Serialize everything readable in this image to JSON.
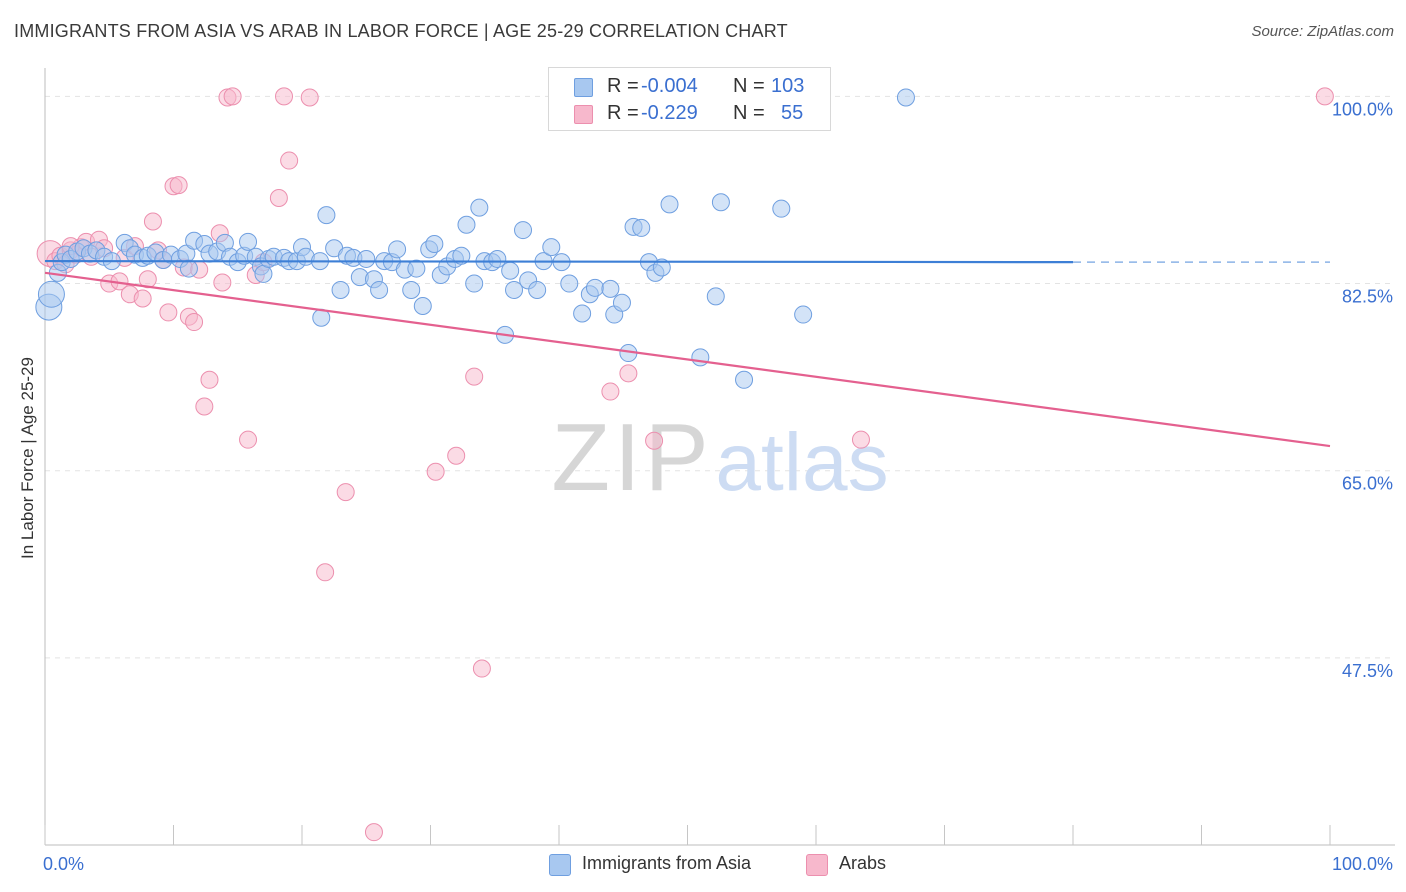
{
  "title": "IMMIGRANTS FROM ASIA VS ARAB IN LABOR FORCE | AGE 25-29 CORRELATION CHART",
  "source": "Source: ZipAtlas.com",
  "watermark": {
    "zip": "ZIP",
    "atlas": "atlas"
  },
  "legend": {
    "series1": {
      "r_label": "R =",
      "r_value": "-0.004",
      "n_label": "N =",
      "n_value": "103"
    },
    "series2": {
      "r_label": "R =",
      "r_value": "-0.229",
      "n_label": "N =",
      "n_value": "55"
    }
  },
  "bottom_legend": {
    "series1": "Immigrants from Asia",
    "series2": "Arabs"
  },
  "colors": {
    "blue_fill": "#a8c8f0",
    "blue_stroke": "#6f9fe0",
    "blue_line": "#3d7fd6",
    "pink_fill": "#f7b8cc",
    "pink_stroke": "#ec8fae",
    "pink_line": "#e4608f",
    "axis_label": "#3a6fd0",
    "grid": "#e3e3e3"
  },
  "chart_data": {
    "type": "scatter",
    "title": "IMMIGRANTS FROM ASIA VS ARAB IN LABOR FORCE | AGE 25-29 CORRELATION CHART",
    "xlabel": "",
    "ylabel": "In Labor Force | Age 25-29",
    "xlim": [
      0,
      100
    ],
    "ylim": [
      30,
      102
    ],
    "x_tick_labels": [
      "0.0%",
      "100.0%"
    ],
    "y_ticks": [
      {
        "value": 100.0,
        "label": "100.0%"
      },
      {
        "value": 82.5,
        "label": "82.5%"
      },
      {
        "value": 65.0,
        "label": "65.0%"
      },
      {
        "value": 47.5,
        "label": "47.5%"
      }
    ],
    "series": [
      {
        "name": "Immigrants from Asia",
        "color": "#6f9fe0",
        "trend": {
          "x": [
            0,
            80
          ],
          "y": [
            84.6,
            84.5
          ],
          "dashed_to_x": 100
        },
        "points": [
          [
            0.3,
            80.3,
            2
          ],
          [
            0.5,
            81.5,
            2
          ],
          [
            1,
            83.5,
            1
          ],
          [
            1.3,
            84.5,
            1
          ],
          [
            1.6,
            85.2,
            1
          ],
          [
            2,
            84.8,
            1
          ],
          [
            2.5,
            85.5,
            1
          ],
          [
            3,
            85.8,
            1
          ],
          [
            3.5,
            85.3,
            1
          ],
          [
            4,
            85.6,
            1
          ],
          [
            4.6,
            85.0,
            1
          ],
          [
            5.2,
            84.6,
            1
          ],
          [
            6.2,
            86.3,
            1
          ],
          [
            6.6,
            85.8,
            1
          ],
          [
            7,
            85.2,
            1
          ],
          [
            7.6,
            84.9,
            1
          ],
          [
            8,
            85.1,
            1
          ],
          [
            8.6,
            85.4,
            1
          ],
          [
            9.2,
            84.7,
            1
          ],
          [
            9.8,
            85.2,
            1
          ],
          [
            10.5,
            84.8,
            1
          ],
          [
            11,
            85.3,
            1
          ],
          [
            11.2,
            83.9,
            1
          ],
          [
            11.6,
            86.5,
            1
          ],
          [
            12.4,
            86.2,
            1
          ],
          [
            12.8,
            85.3,
            1
          ],
          [
            13.4,
            85.5,
            1
          ],
          [
            14,
            86.3,
            1
          ],
          [
            14.4,
            85.0,
            1
          ],
          [
            15,
            84.5,
            1
          ],
          [
            15.5,
            85.1,
            1
          ],
          [
            15.8,
            86.4,
            1
          ],
          [
            16.4,
            85.0,
            1
          ],
          [
            16.8,
            84.1,
            1
          ],
          [
            17,
            83.4,
            1
          ],
          [
            17.4,
            84.8,
            1
          ],
          [
            17.8,
            85.0,
            1
          ],
          [
            18.6,
            84.9,
            1
          ],
          [
            19,
            84.6,
            1
          ],
          [
            19.6,
            84.6,
            1
          ],
          [
            20,
            85.9,
            1
          ],
          [
            20.3,
            85.0,
            1
          ],
          [
            21.4,
            84.6,
            1
          ],
          [
            21.5,
            79.3,
            1
          ],
          [
            21.9,
            88.9,
            1
          ],
          [
            22.5,
            85.8,
            1
          ],
          [
            23,
            81.9,
            1
          ],
          [
            23.5,
            85.1,
            1
          ],
          [
            24,
            84.9,
            1
          ],
          [
            24.5,
            83.1,
            1
          ],
          [
            25,
            84.8,
            1
          ],
          [
            25.6,
            82.9,
            1
          ],
          [
            26,
            81.9,
            1
          ],
          [
            26.4,
            84.6,
            1
          ],
          [
            27,
            84.5,
            1
          ],
          [
            27.4,
            85.7,
            1
          ],
          [
            28,
            83.8,
            1
          ],
          [
            28.5,
            81.9,
            1
          ],
          [
            28.9,
            83.9,
            1
          ],
          [
            29.4,
            80.4,
            1
          ],
          [
            29.9,
            85.7,
            1
          ],
          [
            30.3,
            86.2,
            1
          ],
          [
            30.8,
            83.3,
            1
          ],
          [
            31.3,
            84.1,
            1
          ],
          [
            31.9,
            84.8,
            1
          ],
          [
            32.4,
            85.1,
            1
          ],
          [
            32.8,
            88.0,
            1
          ],
          [
            33.4,
            82.5,
            1
          ],
          [
            33.8,
            89.6,
            1
          ],
          [
            34.2,
            84.6,
            1
          ],
          [
            34.8,
            84.5,
            1
          ],
          [
            35.2,
            84.8,
            1
          ],
          [
            35.8,
            77.7,
            1
          ],
          [
            36.2,
            83.7,
            1
          ],
          [
            36.5,
            81.9,
            1
          ],
          [
            37.2,
            87.5,
            1
          ],
          [
            37.6,
            82.8,
            1
          ],
          [
            38.3,
            81.9,
            1
          ],
          [
            38.8,
            84.6,
            1
          ],
          [
            39.4,
            85.9,
            1
          ],
          [
            40.2,
            84.5,
            1
          ],
          [
            40.8,
            82.5,
            1
          ],
          [
            41.8,
            79.7,
            1
          ],
          [
            42.4,
            81.5,
            1
          ],
          [
            42.8,
            82.1,
            1
          ],
          [
            44,
            82.0,
            1
          ],
          [
            44.3,
            79.6,
            1
          ],
          [
            44.9,
            80.7,
            1
          ],
          [
            45.4,
            76.0,
            1
          ],
          [
            45.8,
            87.8,
            1
          ],
          [
            46.4,
            87.7,
            1
          ],
          [
            47,
            84.5,
            1
          ],
          [
            47.5,
            83.5,
            1
          ],
          [
            48,
            84.0,
            1
          ],
          [
            48.6,
            89.9,
            1
          ],
          [
            51,
            75.6,
            1
          ],
          [
            52.2,
            81.3,
            1
          ],
          [
            52.6,
            90.1,
            1
          ],
          [
            53.6,
            99.9,
            1
          ],
          [
            54.4,
            73.5,
            1
          ],
          [
            57.3,
            89.5,
            1
          ],
          [
            59,
            79.6,
            1
          ],
          [
            67,
            99.9,
            1
          ]
        ]
      },
      {
        "name": "Arabs",
        "color": "#ec8fae",
        "trend": {
          "x": [
            0,
            100
          ],
          "y": [
            83.5,
            67.3
          ]
        },
        "points": [
          [
            0.4,
            85.3,
            2
          ],
          [
            0.8,
            84.6,
            1
          ],
          [
            1.2,
            85.1,
            1
          ],
          [
            1.6,
            84.3,
            1
          ],
          [
            2,
            85.6,
            1
          ],
          [
            2.4,
            85.2,
            1
          ],
          [
            2.8,
            85.9,
            1
          ],
          [
            3.2,
            86.4,
            1
          ],
          [
            3.6,
            85.0,
            1
          ],
          [
            4.2,
            86.6,
            1
          ],
          [
            4.6,
            85.8,
            1
          ],
          [
            5,
            82.5,
            1
          ],
          [
            5.8,
            82.7,
            1
          ],
          [
            6.2,
            84.9,
            1
          ],
          [
            6.6,
            81.5,
            1
          ],
          [
            7,
            86.0,
            1
          ],
          [
            7.6,
            81.1,
            1
          ],
          [
            8,
            82.9,
            1
          ],
          [
            8.4,
            88.3,
            1
          ],
          [
            8.8,
            85.6,
            1
          ],
          [
            9.2,
            84.7,
            1
          ],
          [
            9.6,
            79.8,
            1
          ],
          [
            10,
            91.6,
            1
          ],
          [
            10.4,
            91.7,
            1
          ],
          [
            10.8,
            84.0,
            1
          ],
          [
            11.2,
            79.4,
            1
          ],
          [
            11.6,
            78.9,
            1
          ],
          [
            12,
            83.8,
            1
          ],
          [
            12.4,
            71.0,
            1
          ],
          [
            12.8,
            73.5,
            1
          ],
          [
            13.6,
            87.2,
            1
          ],
          [
            13.8,
            82.6,
            1
          ],
          [
            14.2,
            99.9,
            1
          ],
          [
            14.6,
            100.0,
            1
          ],
          [
            15.8,
            67.9,
            1
          ],
          [
            16.4,
            83.3,
            1
          ],
          [
            17,
            84.5,
            1
          ],
          [
            18.2,
            90.5,
            1
          ],
          [
            18.6,
            100.0,
            1
          ],
          [
            19,
            94.0,
            1
          ],
          [
            20.6,
            99.9,
            1
          ],
          [
            21.8,
            55.5,
            1
          ],
          [
            23.4,
            63.0,
            1
          ],
          [
            25.6,
            31.2,
            1
          ],
          [
            30.4,
            64.9,
            1
          ],
          [
            32,
            66.4,
            1
          ],
          [
            33.4,
            73.8,
            1
          ],
          [
            34,
            46.5,
            1
          ],
          [
            44,
            72.4,
            1
          ],
          [
            45.4,
            74.1,
            1
          ],
          [
            47.4,
            67.8,
            1
          ],
          [
            57.6,
            99.9,
            1
          ],
          [
            63.5,
            67.9,
            1
          ],
          [
            99.6,
            100.0,
            1
          ],
          [
            2.0,
            86.0,
            1
          ]
        ]
      }
    ]
  }
}
